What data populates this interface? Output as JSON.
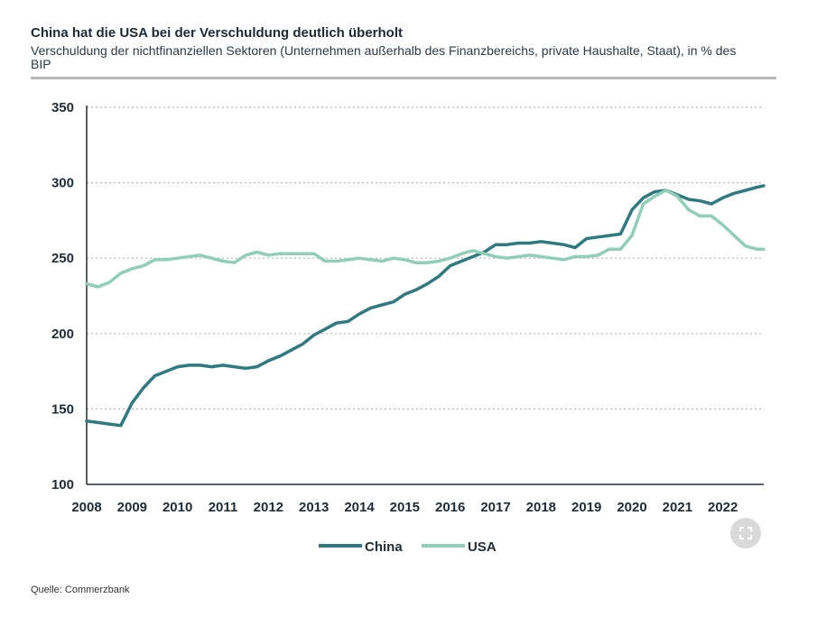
{
  "header": {
    "title": "China hat die USA bei der Verschuldung deutlich überholt",
    "subtitle": "Verschuldung der nichtfinanziellen Sektoren (Unternehmen außerhalb des Finanzbereichs, private Haushalte, Staat), in % des BIP"
  },
  "footer": {
    "source": "Quelle: Commerzbank"
  },
  "icons": {
    "expand": "expand-icon"
  },
  "colors": {
    "China": "#2f7a80",
    "USA": "#8fcfb8",
    "grid": "#b5b5b5",
    "axis": "#1f2d38"
  },
  "chart_data": {
    "type": "line",
    "title": "China hat die USA bei der Verschuldung deutlich überholt",
    "subtitle": "Verschuldung der nichtfinanziellen Sektoren (Unternehmen außerhalb des Finanzbereichs, private Haushalte, Staat), in % des BIP",
    "xlabel": "",
    "ylabel": "",
    "xlim": [
      2008,
      2022.9
    ],
    "ylim": [
      100,
      350
    ],
    "x_ticks": [
      "2008",
      "2009",
      "2010",
      "2011",
      "2012",
      "2013",
      "2014",
      "2015",
      "2016",
      "2017",
      "2018",
      "2019",
      "2020",
      "2021",
      "2022"
    ],
    "y_ticks": [
      100,
      150,
      200,
      250,
      300,
      350
    ],
    "grid": "horizontal dotted",
    "legend": "bottom-center",
    "series": [
      {
        "name": "China",
        "x": [
          2008,
          2008.25,
          2008.5,
          2008.75,
          2009,
          2009.25,
          2009.5,
          2009.75,
          2010,
          2010.25,
          2010.5,
          2010.75,
          2011,
          2011.25,
          2011.5,
          2011.75,
          2012,
          2012.25,
          2012.5,
          2012.75,
          2013,
          2013.25,
          2013.5,
          2013.75,
          2014,
          2014.25,
          2014.5,
          2014.75,
          2015,
          2015.25,
          2015.5,
          2015.75,
          2016,
          2016.25,
          2016.5,
          2016.75,
          2017,
          2017.25,
          2017.5,
          2017.75,
          2018,
          2018.25,
          2018.5,
          2018.75,
          2019,
          2019.25,
          2019.5,
          2019.75,
          2020,
          2020.25,
          2020.5,
          2020.75,
          2021,
          2021.25,
          2021.5,
          2021.75,
          2022,
          2022.25,
          2022.5,
          2022.75,
          2022.9
        ],
        "values": [
          142,
          141,
          140,
          139,
          154,
          164,
          172,
          175,
          178,
          179,
          179,
          178,
          179,
          178,
          177,
          178,
          182,
          185,
          189,
          193,
          199,
          203,
          207,
          208,
          213,
          217,
          219,
          221,
          226,
          229,
          233,
          238,
          245,
          248,
          251,
          254,
          259,
          259,
          260,
          260,
          261,
          260,
          259,
          257,
          263,
          264,
          265,
          266,
          282,
          290,
          294,
          295,
          292,
          289,
          288,
          286,
          290,
          293,
          295,
          297,
          298
        ]
      },
      {
        "name": "USA",
        "x": [
          2008,
          2008.25,
          2008.5,
          2008.75,
          2009,
          2009.25,
          2009.5,
          2009.75,
          2010,
          2010.25,
          2010.5,
          2010.75,
          2011,
          2011.25,
          2011.5,
          2011.75,
          2012,
          2012.25,
          2012.5,
          2012.75,
          2013,
          2013.25,
          2013.5,
          2013.75,
          2014,
          2014.25,
          2014.5,
          2014.75,
          2015,
          2015.25,
          2015.5,
          2015.75,
          2016,
          2016.25,
          2016.5,
          2016.75,
          2017,
          2017.25,
          2017.5,
          2017.75,
          2018,
          2018.25,
          2018.5,
          2018.75,
          2019,
          2019.25,
          2019.5,
          2019.75,
          2020,
          2020.25,
          2020.5,
          2020.75,
          2021,
          2021.25,
          2021.5,
          2021.75,
          2022,
          2022.25,
          2022.5,
          2022.75,
          2022.9
        ],
        "values": [
          233,
          231,
          234,
          240,
          243,
          245,
          249,
          249,
          250,
          251,
          252,
          250,
          248,
          247,
          252,
          254,
          252,
          253,
          253,
          253,
          253,
          248,
          248,
          249,
          250,
          249,
          248,
          250,
          249,
          247,
          247,
          248,
          250,
          253,
          255,
          253,
          251,
          250,
          251,
          252,
          251,
          250,
          249,
          251,
          251,
          252,
          256,
          256,
          265,
          286,
          291,
          295,
          291,
          282,
          278,
          278,
          272,
          265,
          258,
          256,
          256
        ]
      }
    ]
  }
}
